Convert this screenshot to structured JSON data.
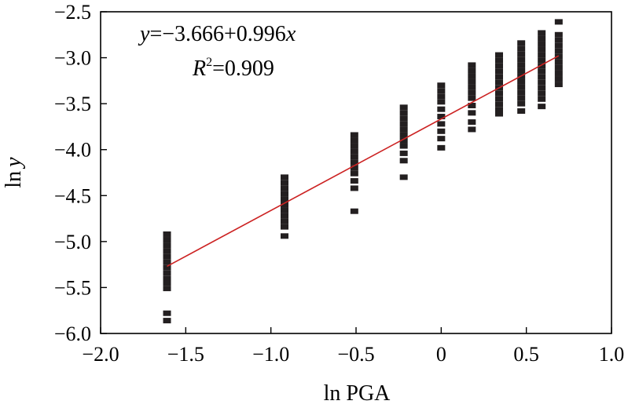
{
  "chart_data": {
    "type": "scatter",
    "title": "",
    "xlabel": "ln PGA",
    "ylabel": "ln y",
    "xlabel_prefix": "ln",
    "xlabel_main": "PGA",
    "ylabel_prefix": "ln",
    "ylabel_var": "y",
    "xlim": [
      -2.0,
      1.0
    ],
    "ylim": [
      -6.0,
      -2.5
    ],
    "xticks": [
      -2.0,
      -1.5,
      -1.0,
      -0.5,
      0,
      0.5,
      1.0
    ],
    "xtick_labels": [
      "−2.0",
      "−1.5",
      "−1.0",
      "−0.5",
      "0",
      "0.5",
      "1.0"
    ],
    "yticks": [
      -2.5,
      -3.0,
      -3.5,
      -4.0,
      -4.5,
      -5.0,
      -5.5,
      -6.0
    ],
    "ytick_labels": [
      "−2.5",
      "−3.0",
      "−3.5",
      "−4.0",
      "−4.5",
      "−5.0",
      "−5.5",
      "−6.0"
    ],
    "grid": false,
    "fit": {
      "intercept": -3.666,
      "slope": 0.996,
      "x_range": [
        -1.61,
        0.69
      ],
      "color": "#cc2222",
      "equation_y": "y",
      "equation_rest": "=−3.666+0.996",
      "equation_x": "x",
      "r2_var": "R",
      "r2_sup": "2",
      "r2_value": "=0.909"
    },
    "marker_color": "#231f20",
    "series": [
      {
        "name": "observations",
        "points": [
          [
            -1.61,
            -4.92
          ],
          [
            -1.61,
            -4.98
          ],
          [
            -1.61,
            -5.04
          ],
          [
            -1.61,
            -5.1
          ],
          [
            -1.61,
            -5.16
          ],
          [
            -1.61,
            -5.22
          ],
          [
            -1.61,
            -5.28
          ],
          [
            -1.61,
            -5.34
          ],
          [
            -1.61,
            -5.4
          ],
          [
            -1.61,
            -5.45
          ],
          [
            -1.61,
            -5.51
          ],
          [
            -1.61,
            -5.78
          ],
          [
            -1.61,
            -5.86
          ],
          [
            -0.92,
            -4.3
          ],
          [
            -0.92,
            -4.36
          ],
          [
            -0.92,
            -4.42
          ],
          [
            -0.92,
            -4.48
          ],
          [
            -0.92,
            -4.54
          ],
          [
            -0.92,
            -4.6
          ],
          [
            -0.92,
            -4.66
          ],
          [
            -0.92,
            -4.72
          ],
          [
            -0.92,
            -4.78
          ],
          [
            -0.92,
            -4.84
          ],
          [
            -0.92,
            -4.94
          ],
          [
            -0.51,
            -3.84
          ],
          [
            -0.51,
            -3.9
          ],
          [
            -0.51,
            -3.96
          ],
          [
            -0.51,
            -4.02
          ],
          [
            -0.51,
            -4.08
          ],
          [
            -0.51,
            -4.14
          ],
          [
            -0.51,
            -4.2
          ],
          [
            -0.51,
            -4.26
          ],
          [
            -0.51,
            -4.34
          ],
          [
            -0.51,
            -4.42
          ],
          [
            -0.51,
            -4.67
          ],
          [
            -0.22,
            -3.54
          ],
          [
            -0.22,
            -3.6
          ],
          [
            -0.22,
            -3.66
          ],
          [
            -0.22,
            -3.72
          ],
          [
            -0.22,
            -3.78
          ],
          [
            -0.22,
            -3.84
          ],
          [
            -0.22,
            -3.9
          ],
          [
            -0.22,
            -3.96
          ],
          [
            -0.22,
            -4.04
          ],
          [
            -0.22,
            -4.12
          ],
          [
            -0.22,
            -4.3
          ],
          [
            0.0,
            -3.3
          ],
          [
            0.0,
            -3.36
          ],
          [
            0.0,
            -3.42
          ],
          [
            0.0,
            -3.48
          ],
          [
            0.0,
            -3.56
          ],
          [
            0.0,
            -3.64
          ],
          [
            0.0,
            -3.72
          ],
          [
            0.0,
            -3.8
          ],
          [
            0.0,
            -3.88
          ],
          [
            0.0,
            -3.98
          ],
          [
            0.18,
            -3.08
          ],
          [
            0.18,
            -3.14
          ],
          [
            0.18,
            -3.2
          ],
          [
            0.18,
            -3.26
          ],
          [
            0.18,
            -3.32
          ],
          [
            0.18,
            -3.38
          ],
          [
            0.18,
            -3.44
          ],
          [
            0.18,
            -3.52
          ],
          [
            0.18,
            -3.6
          ],
          [
            0.18,
            -3.7
          ],
          [
            0.18,
            -3.78
          ],
          [
            0.34,
            -2.97
          ],
          [
            0.34,
            -3.03
          ],
          [
            0.34,
            -3.09
          ],
          [
            0.34,
            -3.15
          ],
          [
            0.34,
            -3.21
          ],
          [
            0.34,
            -3.27
          ],
          [
            0.34,
            -3.33
          ],
          [
            0.34,
            -3.39
          ],
          [
            0.34,
            -3.45
          ],
          [
            0.34,
            -3.51
          ],
          [
            0.34,
            -3.57
          ],
          [
            0.34,
            -3.61
          ],
          [
            0.47,
            -2.84
          ],
          [
            0.47,
            -2.9
          ],
          [
            0.47,
            -2.96
          ],
          [
            0.47,
            -3.02
          ],
          [
            0.47,
            -3.08
          ],
          [
            0.47,
            -3.14
          ],
          [
            0.47,
            -3.2
          ],
          [
            0.47,
            -3.26
          ],
          [
            0.47,
            -3.32
          ],
          [
            0.47,
            -3.38
          ],
          [
            0.47,
            -3.44
          ],
          [
            0.47,
            -3.5
          ],
          [
            0.47,
            -3.58
          ],
          [
            0.59,
            -2.73
          ],
          [
            0.59,
            -2.79
          ],
          [
            0.59,
            -2.85
          ],
          [
            0.59,
            -2.91
          ],
          [
            0.59,
            -2.97
          ],
          [
            0.59,
            -3.03
          ],
          [
            0.59,
            -3.09
          ],
          [
            0.59,
            -3.15
          ],
          [
            0.59,
            -3.21
          ],
          [
            0.59,
            -3.27
          ],
          [
            0.59,
            -3.33
          ],
          [
            0.59,
            -3.39
          ],
          [
            0.59,
            -3.45
          ],
          [
            0.59,
            -3.53
          ],
          [
            0.69,
            -2.61
          ],
          [
            0.69,
            -2.75
          ],
          [
            0.69,
            -2.81
          ],
          [
            0.69,
            -2.87
          ],
          [
            0.69,
            -2.93
          ],
          [
            0.69,
            -2.99
          ],
          [
            0.69,
            -3.05
          ],
          [
            0.69,
            -3.11
          ],
          [
            0.69,
            -3.17
          ],
          [
            0.69,
            -3.23
          ],
          [
            0.69,
            -3.29
          ]
        ]
      }
    ]
  }
}
